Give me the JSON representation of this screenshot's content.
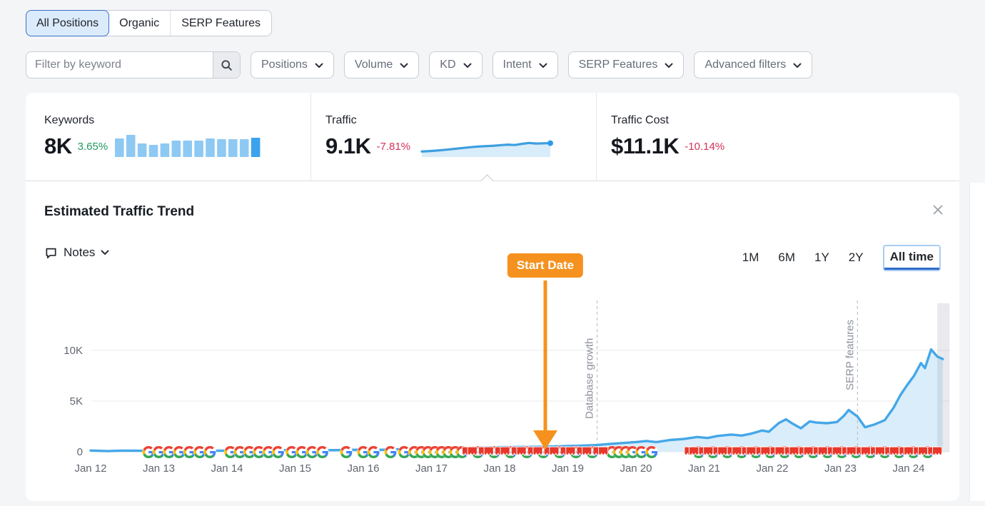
{
  "tabs": {
    "items": [
      {
        "label": "All Positions",
        "selected": true
      },
      {
        "label": "Organic",
        "selected": false
      },
      {
        "label": "SERP Features",
        "selected": false
      }
    ]
  },
  "filters": {
    "keyword_placeholder": "Filter by keyword",
    "dropdowns": [
      "Positions",
      "Volume",
      "KD",
      "Intent",
      "SERP Features",
      "Advanced filters"
    ]
  },
  "stats": {
    "keywords": {
      "label": "Keywords",
      "value": "8K",
      "change": "3.65%",
      "change_color": "#219a5e",
      "bars": [
        0.85,
        1.0,
        0.62,
        0.55,
        0.6,
        0.73,
        0.73,
        0.73,
        0.85,
        0.8,
        0.8,
        0.8,
        0.87
      ],
      "bar_color": "#8ec9f3",
      "bar_color_last": "#3ba2ec"
    },
    "traffic": {
      "label": "Traffic",
      "value": "9.1K",
      "change": "-7.81%",
      "change_color": "#d6335a",
      "spark": [
        0.22,
        0.24,
        0.27,
        0.3,
        0.34,
        0.38,
        0.42,
        0.46,
        0.49,
        0.51,
        0.53,
        0.56,
        0.59,
        0.57,
        0.63,
        0.68,
        0.65,
        0.66,
        0.67
      ],
      "spark_line_color": "#3d9fe0",
      "spark_fill_color": "#d9ecfa",
      "spark_dot_color": "#2d9bea"
    },
    "traffic_cost": {
      "label": "Traffic Cost",
      "value": "$11.1K",
      "change": "-10.14%",
      "change_color": "#d6335a"
    }
  },
  "trend": {
    "title": "Estimated Traffic Trend",
    "notes_label": "Notes",
    "ranges": [
      {
        "label": "1M",
        "selected": false
      },
      {
        "label": "6M",
        "selected": false
      },
      {
        "label": "1Y",
        "selected": false
      },
      {
        "label": "2Y",
        "selected": false
      },
      {
        "label": "All time",
        "selected": true
      }
    ]
  },
  "icons": {
    "search": "magnifier",
    "chevron": "chevron-down",
    "close": "x",
    "notes": "speech-bubble",
    "google": "google-g-logo",
    "flag": "red-note-flag",
    "caret": "caret-up"
  },
  "chart_data": {
    "type": "area",
    "title": "Estimated Traffic Trend",
    "x_unit": "years (January of each year, 2012-2024)",
    "x_tick_labels": [
      "Jan 12",
      "Jan 13",
      "Jan 14",
      "Jan 15",
      "Jan 16",
      "Jan 17",
      "Jan 18",
      "Jan 19",
      "Jan 20",
      "Jan 21",
      "Jan 22",
      "Jan 23",
      "Jan 24"
    ],
    "y_tick_labels": [
      "0",
      "5K",
      "10K"
    ],
    "y_gridlines": [
      0,
      5000,
      10000
    ],
    "ylim": [
      0,
      15000
    ],
    "xlim": [
      0,
      12.6
    ],
    "grid": true,
    "line_color": "#45a7e8",
    "fill_color": "#d9edfa",
    "points": [
      [
        0,
        120
      ],
      [
        0.25,
        60
      ],
      [
        0.45,
        110
      ],
      [
        0.7,
        100
      ],
      [
        1.0,
        70
      ],
      [
        1.3,
        110
      ],
      [
        1.6,
        120
      ],
      [
        1.9,
        100
      ],
      [
        2.2,
        130
      ],
      [
        2.5,
        110
      ],
      [
        2.8,
        170
      ],
      [
        3.0,
        130
      ],
      [
        3.3,
        150
      ],
      [
        3.6,
        160
      ],
      [
        3.9,
        200
      ],
      [
        4.2,
        180
      ],
      [
        4.5,
        240
      ],
      [
        4.8,
        260
      ],
      [
        5.0,
        300
      ],
      [
        5.2,
        340
      ],
      [
        5.5,
        400
      ],
      [
        5.8,
        430
      ],
      [
        6.0,
        450
      ],
      [
        6.3,
        470
      ],
      [
        6.67,
        500
      ],
      [
        7.0,
        560
      ],
      [
        7.2,
        600
      ],
      [
        7.43,
        660
      ],
      [
        7.6,
        760
      ],
      [
        7.8,
        860
      ],
      [
        8.0,
        960
      ],
      [
        8.15,
        1060
      ],
      [
        8.3,
        960
      ],
      [
        8.5,
        1160
      ],
      [
        8.7,
        1260
      ],
      [
        8.9,
        1460
      ],
      [
        9.05,
        1360
      ],
      [
        9.2,
        1560
      ],
      [
        9.4,
        1700
      ],
      [
        9.55,
        1600
      ],
      [
        9.7,
        1800
      ],
      [
        9.85,
        2100
      ],
      [
        9.95,
        1980
      ],
      [
        10.1,
        2850
      ],
      [
        10.2,
        3200
      ],
      [
        10.3,
        2760
      ],
      [
        10.42,
        2320
      ],
      [
        10.55,
        3000
      ],
      [
        10.65,
        2880
      ],
      [
        10.8,
        2820
      ],
      [
        10.95,
        2940
      ],
      [
        11.05,
        3550
      ],
      [
        11.12,
        4120
      ],
      [
        11.25,
        3480
      ],
      [
        11.36,
        2420
      ],
      [
        11.5,
        2700
      ],
      [
        11.65,
        3120
      ],
      [
        11.78,
        4350
      ],
      [
        11.88,
        5600
      ],
      [
        11.98,
        6600
      ],
      [
        12.08,
        7500
      ],
      [
        12.18,
        8750
      ],
      [
        12.24,
        8250
      ],
      [
        12.33,
        10100
      ],
      [
        12.42,
        9400
      ],
      [
        12.5,
        9150
      ]
    ],
    "annotations": [
      {
        "type": "badge-arrow",
        "label": "Start Date",
        "x": 6.67,
        "color": "#f5921f"
      },
      {
        "type": "dashed-line",
        "label": "Database growth",
        "x": 7.43,
        "label_y": 190
      },
      {
        "type": "dashed-line",
        "label": "SERP features",
        "x": 11.25,
        "label_y": 150
      },
      {
        "type": "highlight-band",
        "x_from": 12.42,
        "x_to": 12.6
      }
    ],
    "axis_icon_clusters": [
      {
        "type": "google",
        "from": 0.85,
        "to": 1.76,
        "step": 0.15
      },
      {
        "type": "google",
        "from": 2.05,
        "to": 2.76,
        "step": 0.14
      },
      {
        "type": "google",
        "from": 2.95,
        "to": 3.41,
        "step": 0.15
      },
      {
        "type": "google",
        "from": 3.75,
        "to": 3.76,
        "step": 1
      },
      {
        "type": "google",
        "from": 4.0,
        "to": 4.16,
        "step": 0.15
      },
      {
        "type": "google",
        "from": 4.4,
        "to": 4.61,
        "step": 0.2
      },
      {
        "type": "google",
        "from": 4.75,
        "to": 5.46,
        "step": 0.1
      },
      {
        "type": "mixed",
        "from": 5.52,
        "to": 7.58,
        "step": 0.08
      },
      {
        "type": "google",
        "from": 7.65,
        "to": 7.96,
        "step": 0.1
      },
      {
        "type": "google",
        "from": 8.08,
        "to": 8.24,
        "step": 0.15
      },
      {
        "type": "mixed",
        "from": 8.78,
        "to": 12.46,
        "step": 0.07
      }
    ]
  }
}
